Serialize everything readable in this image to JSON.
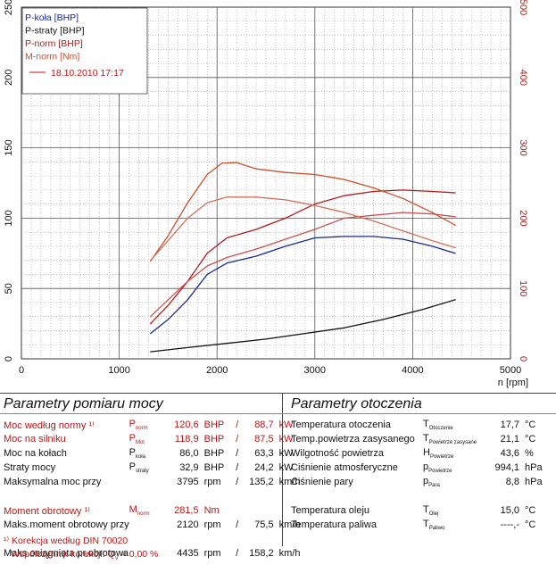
{
  "chart_data": {
    "type": "line",
    "x_unit_label": "n [rpm]",
    "x_ticks": [
      0,
      1000,
      2000,
      3000,
      4000,
      5000
    ],
    "xlim": [
      0,
      5000
    ],
    "y_left_ticks": [
      0,
      50,
      100,
      150,
      200,
      250
    ],
    "ylim_left": [
      0,
      250
    ],
    "y_right_ticks": [
      0,
      100,
      200,
      300,
      400,
      500
    ],
    "ylim_right": [
      0,
      500
    ],
    "grid": true,
    "legend": {
      "placement": "top-left",
      "entries": [
        {
          "label": "P-koła [BHP]",
          "color": "#1a2a8a"
        },
        {
          "label": "P-straty [BHP]",
          "color": "#111111"
        },
        {
          "label": "P-norm [BHP]",
          "color": "#b01a1a"
        },
        {
          "label": "M-norm [Nm]",
          "color": "#c8502a"
        }
      ],
      "date_line": "18.10.2010 17:17"
    },
    "series": [
      {
        "name": "P-koła [BHP]",
        "axis": "left",
        "color": "#1a2a8a",
        "x": [
          1320,
          1500,
          1700,
          1900,
          2100,
          2400,
          2700,
          3000,
          3300,
          3600,
          3900,
          4200,
          4435
        ],
        "y": [
          18,
          28,
          42,
          60,
          68,
          73,
          80,
          86,
          87,
          87,
          85,
          80,
          75
        ]
      },
      {
        "name": "P-straty [BHP]",
        "axis": "left",
        "color": "#111111",
        "x": [
          1320,
          1700,
          2100,
          2500,
          2900,
          3300,
          3700,
          4100,
          4435
        ],
        "y": [
          5,
          8,
          11,
          14,
          18,
          22,
          28,
          35,
          42
        ]
      },
      {
        "name": "P-norm [BHP]",
        "axis": "left",
        "color": "#b01a1a",
        "x": [
          1320,
          1500,
          1700,
          1900,
          2100,
          2400,
          2700,
          3000,
          3300,
          3600,
          3900,
          4200,
          4435
        ],
        "y": [
          25,
          38,
          55,
          75,
          86,
          92,
          100,
          110,
          116,
          119,
          120,
          119,
          118
        ]
      },
      {
        "name": "P-norm [BHP]",
        "axis": "left",
        "color": "#c85050",
        "x": [
          1320,
          1500,
          1700,
          1900,
          2100,
          2400,
          2700,
          3000,
          3300,
          3600,
          3900,
          4200,
          4435
        ],
        "y": [
          30,
          42,
          55,
          66,
          72,
          78,
          85,
          92,
          100,
          102,
          104,
          103,
          101
        ]
      },
      {
        "name": "M-norm [Nm]",
        "axis": "right",
        "color": "#c8502a",
        "x": [
          1320,
          1500,
          1700,
          1900,
          2050,
          2200,
          2400,
          2700,
          3000,
          3300,
          3600,
          3900,
          4200,
          4435
        ],
        "y": [
          139,
          175,
          222,
          262,
          278,
          279,
          270,
          265,
          262,
          255,
          243,
          228,
          208,
          190
        ]
      },
      {
        "name": "M-norm [Nm]",
        "axis": "right",
        "color": "#d0705a",
        "x": [
          1320,
          1500,
          1700,
          1900,
          2100,
          2400,
          2700,
          3000,
          3300,
          3600,
          3900,
          4200,
          4435
        ],
        "y": [
          140,
          168,
          200,
          222,
          230,
          230,
          226,
          218,
          208,
          196,
          182,
          168,
          158
        ]
      }
    ]
  },
  "left_panel": {
    "title": "Parametry pomiaru mocy",
    "rows": [
      {
        "label": "Moc według normy ¹⁾",
        "sym": "P",
        "sub": "norm",
        "v1": "120,6",
        "u1": "BHP",
        "slash": "/",
        "v2": "88,7",
        "u2": "kW",
        "red": true
      },
      {
        "label": "Moc na silniku",
        "sym": "P",
        "sub": "Mot",
        "v1": "118,9",
        "u1": "BHP",
        "slash": "/",
        "v2": "87,5",
        "u2": "kW",
        "red": true
      },
      {
        "label": "Moc na kołach",
        "sym": "P",
        "sub": "koła",
        "v1": "86,0",
        "u1": "BHP",
        "slash": "/",
        "v2": "63,3",
        "u2": "kW",
        "red": false
      },
      {
        "label": "Straty mocy",
        "sym": "P",
        "sub": "straty",
        "v1": "32,9",
        "u1": "BHP",
        "slash": "/",
        "v2": "24,2",
        "u2": "kW",
        "red": false
      },
      {
        "label": "Maksymalna moc przy",
        "sym": "",
        "sub": "",
        "v1": "3795",
        "u1": "rpm",
        "slash": "/",
        "v2": "135,2",
        "u2": "km/h",
        "red": false
      },
      {
        "label": "",
        "sym": "",
        "sub": "",
        "v1": "",
        "u1": "",
        "slash": "",
        "v2": "",
        "u2": "",
        "red": false
      },
      {
        "label": "Moment obrotowy ¹⁾",
        "sym": "M",
        "sub": "norm",
        "v1": "281,5",
        "u1": "Nm",
        "slash": "",
        "v2": "",
        "u2": "",
        "red": true
      },
      {
        "label": "Maks.moment obrotowy przy",
        "sym": "",
        "sub": "",
        "v1": "2120",
        "u1": "rpm",
        "slash": "/",
        "v2": "75,5",
        "u2": "km/h",
        "red": false
      },
      {
        "label": "",
        "sym": "",
        "sub": "",
        "v1": "",
        "u1": "",
        "slash": "",
        "v2": "",
        "u2": "",
        "red": false
      },
      {
        "label": "Maks.osiągnięta pr.obrotowa",
        "sym": "",
        "sub": "",
        "v1": "4435",
        "u1": "rpm",
        "slash": "/",
        "v2": "158,2",
        "u2": "km/h",
        "red": false
      }
    ],
    "footnote1": "¹⁾ Korekcja według DIN 70020",
    "footnote2": "Współczynnik korekcji: Q",
    "footnote2_sub": "V",
    "footnote2_value": "=    0,00 %"
  },
  "right_panel": {
    "title": "Parametry otoczenia",
    "rows": [
      {
        "label": "Temperatura otoczenia",
        "sym": "T",
        "sub": "Otoczenie",
        "val": "17,7",
        "unit": "°C"
      },
      {
        "label": "Temp.powietrza zasysanego",
        "sym": "T",
        "sub": "Powietrze zasysane",
        "val": "21,1",
        "unit": "°C"
      },
      {
        "label": "Wilgotność powietrza",
        "sym": "H",
        "sub": "Powietrze",
        "val": "43,6",
        "unit": "%"
      },
      {
        "label": "Ciśnienie atmosferyczne",
        "sym": "p",
        "sub": "Powietrze",
        "val": "994,1",
        "unit": "hPa"
      },
      {
        "label": "Ciśnienie pary",
        "sym": "p",
        "sub": "Para",
        "val": "8,8",
        "unit": "hPa"
      },
      {
        "label": "",
        "sym": "",
        "sub": "",
        "val": "",
        "unit": ""
      },
      {
        "label": "Temperatura oleju",
        "sym": "T",
        "sub": "Olej",
        "val": "15,0",
        "unit": "°C"
      },
      {
        "label": "Temperatura paliwa",
        "sym": "T",
        "sub": "Paliwo",
        "val": "----,-",
        "unit": "°C"
      }
    ]
  }
}
